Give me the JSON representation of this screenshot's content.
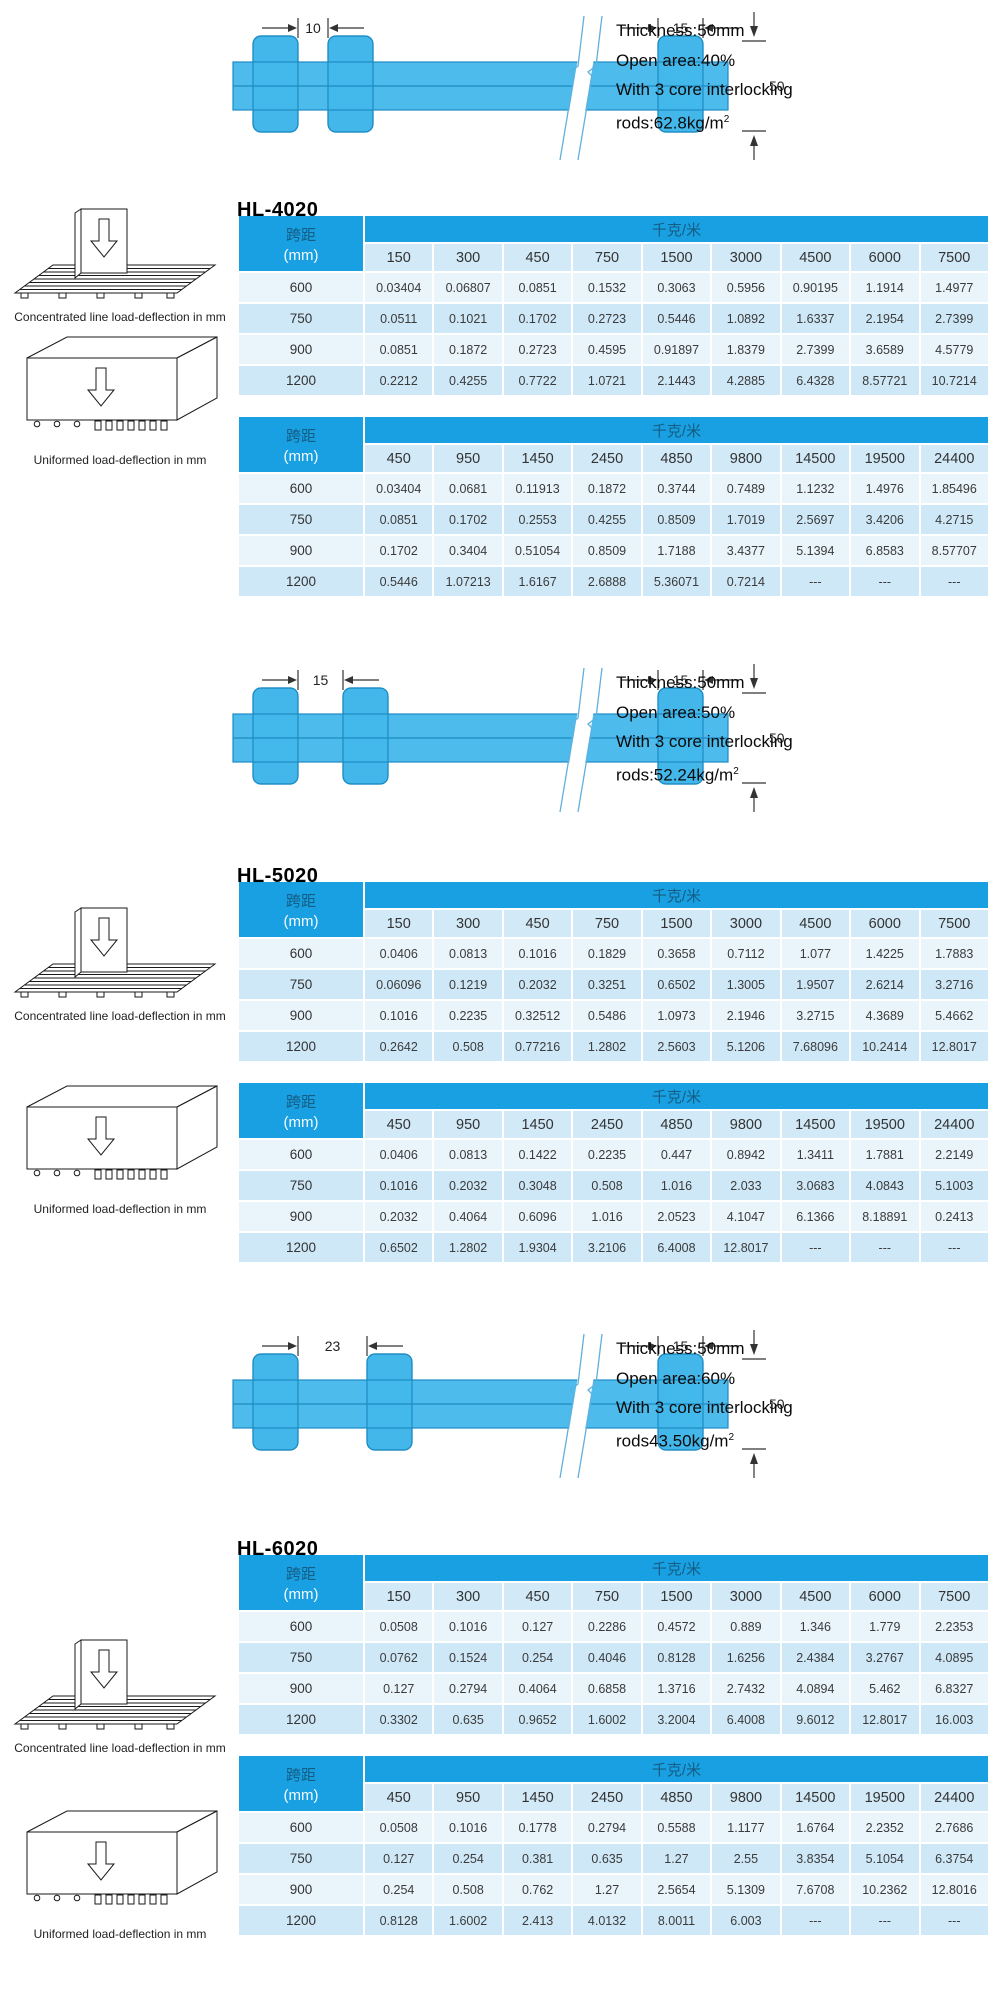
{
  "captions": {
    "concentrated": "Concentrated line load-deflection in mm",
    "uniform": "Uniformed load-deflection in mm"
  },
  "table_labels": {
    "span": "跨距",
    "span_unit": "(mm)",
    "load_unit": "千克/米",
    "na": "---"
  },
  "colors": {
    "header_blue": "#18a0e2",
    "subheader_blue": "#d2e9f7",
    "row_light": "#e9f4fb",
    "row_dark": "#cfe8f7",
    "diagram_fill": "#43b7ea",
    "diagram_stroke": "#1d8cc4"
  },
  "sections": [
    {
      "model": "HL-4020",
      "specs": {
        "thickness": "Thickness:50mm",
        "open_area": "Open area:40%",
        "interlocking": "With 3 core interlocking",
        "rods": "rods:62.8kg/m",
        "rods_sup": "2"
      },
      "diagram": {
        "dim1": "10",
        "dim2": "15",
        "height": "50"
      },
      "tables": [
        {
          "columns": [
            "150",
            "300",
            "450",
            "750",
            "1500",
            "3000",
            "4500",
            "6000",
            "7500"
          ],
          "rows": [
            {
              "span": "600",
              "values": [
                "0.03404",
                "0.06807",
                "0.0851",
                "0.1532",
                "0.3063",
                "0.5956",
                "0.90195",
                "1.1914",
                "1.4977"
              ]
            },
            {
              "span": "750",
              "values": [
                "0.0511",
                "0.1021",
                "0.1702",
                "0.2723",
                "0.5446",
                "1.0892",
                "1.6337",
                "2.1954",
                "2.7399"
              ]
            },
            {
              "span": "900",
              "values": [
                "0.0851",
                "0.1872",
                "0.2723",
                "0.4595",
                "0.91897",
                "1.8379",
                "2.7399",
                "3.6589",
                "4.5779"
              ]
            },
            {
              "span": "1200",
              "values": [
                "0.2212",
                "0.4255",
                "0.7722",
                "1.0721",
                "2.1443",
                "4.2885",
                "6.4328",
                "8.57721",
                "10.7214"
              ]
            }
          ]
        },
        {
          "columns": [
            "450",
            "950",
            "1450",
            "2450",
            "4850",
            "9800",
            "14500",
            "19500",
            "24400"
          ],
          "rows": [
            {
              "span": "600",
              "values": [
                "0.03404",
                "0.0681",
                "0.11913",
                "0.1872",
                "0.3744",
                "0.7489",
                "1.1232",
                "1.4976",
                "1.85496"
              ]
            },
            {
              "span": "750",
              "values": [
                "0.0851",
                "0.1702",
                "0.2553",
                "0.4255",
                "0.8509",
                "1.7019",
                "2.5697",
                "3.4206",
                "4.2715"
              ]
            },
            {
              "span": "900",
              "values": [
                "0.1702",
                "0.3404",
                "0.51054",
                "0.8509",
                "1.7188",
                "3.4377",
                "5.1394",
                "6.8583",
                "8.57707"
              ]
            },
            {
              "span": "1200",
              "values": [
                "0.5446",
                "1.07213",
                "1.6167",
                "2.6888",
                "5.36071",
                "0.7214",
                "---",
                "---",
                "---"
              ]
            }
          ]
        }
      ]
    },
    {
      "model": "HL-5020",
      "specs": {
        "thickness": "Thickness:50mm",
        "open_area": "Open area:50%",
        "interlocking": "With 3 core interlocking",
        "rods": "rods:52.24kg/m",
        "rods_sup": "2"
      },
      "diagram": {
        "dim1": "15",
        "dim2": "15",
        "height": "50"
      },
      "tables": [
        {
          "columns": [
            "150",
            "300",
            "450",
            "750",
            "1500",
            "3000",
            "4500",
            "6000",
            "7500"
          ],
          "rows": [
            {
              "span": "600",
              "values": [
                "0.0406",
                "0.0813",
                "0.1016",
                "0.1829",
                "0.3658",
                "0.7112",
                "1.077",
                "1.4225",
                "1.7883"
              ]
            },
            {
              "span": "750",
              "values": [
                "0.06096",
                "0.1219",
                "0.2032",
                "0.3251",
                "0.6502",
                "1.3005",
                "1.9507",
                "2.6214",
                "3.2716"
              ]
            },
            {
              "span": "900",
              "values": [
                "0.1016",
                "0.2235",
                "0.32512",
                "0.5486",
                "1.0973",
                "2.1946",
                "3.2715",
                "4.3689",
                "5.4662"
              ]
            },
            {
              "span": "1200",
              "values": [
                "0.2642",
                "0.508",
                "0.77216",
                "1.2802",
                "2.5603",
                "5.1206",
                "7.68096",
                "10.2414",
                "12.8017"
              ]
            }
          ]
        },
        {
          "columns": [
            "450",
            "950",
            "1450",
            "2450",
            "4850",
            "9800",
            "14500",
            "19500",
            "24400"
          ],
          "rows": [
            {
              "span": "600",
              "values": [
                "0.0406",
                "0.0813",
                "0.1422",
                "0.2235",
                "0.447",
                "0.8942",
                "1.3411",
                "1.7881",
                "2.2149"
              ]
            },
            {
              "span": "750",
              "values": [
                "0.1016",
                "0.2032",
                "0.3048",
                "0.508",
                "1.016",
                "2.033",
                "3.0683",
                "4.0843",
                "5.1003"
              ]
            },
            {
              "span": "900",
              "values": [
                "0.2032",
                "0.4064",
                "0.6096",
                "1.016",
                "2.0523",
                "4.1047",
                "6.1366",
                "8.18891",
                "0.2413"
              ]
            },
            {
              "span": "1200",
              "values": [
                "0.6502",
                "1.2802",
                "1.9304",
                "3.2106",
                "6.4008",
                "12.8017",
                "---",
                "---",
                "---"
              ]
            }
          ]
        }
      ]
    },
    {
      "model": "HL-6020",
      "specs": {
        "thickness": "Thickness:50mm",
        "open_area": "Open area:60%",
        "interlocking": "With 3 core interlocking",
        "rods": "rods43.50kg/m",
        "rods_sup": "2"
      },
      "diagram": {
        "dim1": "23",
        "dim2": "15",
        "height": "50"
      },
      "tables": [
        {
          "columns": [
            "150",
            "300",
            "450",
            "750",
            "1500",
            "3000",
            "4500",
            "6000",
            "7500"
          ],
          "rows": [
            {
              "span": "600",
              "values": [
                "0.0508",
                "0.1016",
                "0.127",
                "0.2286",
                "0.4572",
                "0.889",
                "1.346",
                "1.779",
                "2.2353"
              ]
            },
            {
              "span": "750",
              "values": [
                "0.0762",
                "0.1524",
                "0.254",
                "0.4046",
                "0.8128",
                "1.6256",
                "2.4384",
                "3.2767",
                "4.0895"
              ]
            },
            {
              "span": "900",
              "values": [
                "0.127",
                "0.2794",
                "0.4064",
                "0.6858",
                "1.3716",
                "2.7432",
                "4.0894",
                "5.462",
                "6.8327"
              ]
            },
            {
              "span": "1200",
              "values": [
                "0.3302",
                "0.635",
                "0.9652",
                "1.6002",
                "3.2004",
                "6.4008",
                "9.6012",
                "12.8017",
                "16.003"
              ]
            }
          ]
        },
        {
          "columns": [
            "450",
            "950",
            "1450",
            "2450",
            "4850",
            "9800",
            "14500",
            "19500",
            "24400"
          ],
          "rows": [
            {
              "span": "600",
              "values": [
                "0.0508",
                "0.1016",
                "0.1778",
                "0.2794",
                "0.5588",
                "1.1177",
                "1.6764",
                "2.2352",
                "2.7686"
              ]
            },
            {
              "span": "750",
              "values": [
                "0.127",
                "0.254",
                "0.381",
                "0.635",
                "1.27",
                "2.55",
                "3.8354",
                "5.1054",
                "6.3754"
              ]
            },
            {
              "span": "900",
              "values": [
                "0.254",
                "0.508",
                "0.762",
                "1.27",
                "2.5654",
                "5.1309",
                "7.6708",
                "10.2362",
                "12.8016"
              ]
            },
            {
              "span": "1200",
              "values": [
                "0.8128",
                "1.6002",
                "2.413",
                "4.0132",
                "8.0011",
                "6.003",
                "---",
                "---",
                "---"
              ]
            }
          ]
        }
      ]
    }
  ]
}
